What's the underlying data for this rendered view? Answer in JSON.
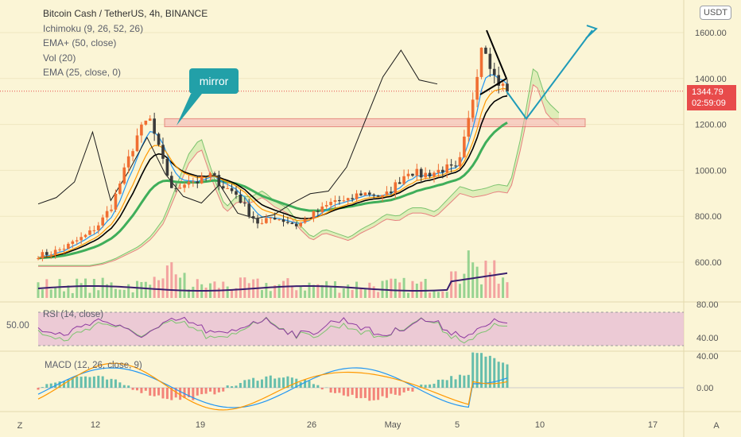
{
  "legend": {
    "title": "Bitcoin Cash / TetherUS, 4h, BINANCE",
    "items": [
      "Ichimoku (9, 26, 52, 26)",
      "EMA+ (50, close)",
      "Vol (20)",
      "EMA (25, close, 0)"
    ]
  },
  "currency_badge": "USDT",
  "annotation": "mirror",
  "price_tag": {
    "price": "1344.79",
    "countdown": "02:59:09"
  },
  "rsi_label": "RSI (14, close)",
  "rsi_left_value": "50.00",
  "macd_label": "MACD (12, 26, close, 9)",
  "corner_left": "Z",
  "corner_right": "A",
  "colors": {
    "background": "#fbf5d6",
    "up": "#f06e32",
    "down": "#3a3a3a",
    "ema_black": "#000000",
    "ema_green": "#3fae5a",
    "tenkan": "#2196f3",
    "kijun": "#ff9800",
    "chikou": "#1a1a1a",
    "cloud_green": "#c8e6a0",
    "cloud_red": "#f4b7b7",
    "zone": "#f6b6b6",
    "projection": "#1f9bb8",
    "rsi_band": "#e6b8d4",
    "price_tag": "#e84b4b"
  },
  "chart_data": {
    "type": "candlestick",
    "symbol": "BCHUSDT",
    "timeframe": "4h",
    "x_tick_labels": [
      "12",
      "19",
      "26",
      "May",
      "5",
      "10",
      "17"
    ],
    "price_axis": {
      "ticks": [
        1600,
        1400,
        1200,
        1000,
        800,
        600
      ],
      "labels": [
        "1600.00",
        "1400.00",
        "1200.00",
        "1000.00",
        "800.00",
        "600.00"
      ]
    },
    "rsi_axis": {
      "labels": [
        "80.00",
        "40.00"
      ]
    },
    "macd_axis": {
      "labels": [
        "40.00",
        "0.00"
      ]
    },
    "last_price": 1344.79,
    "zone": {
      "low": 1190,
      "high": 1225
    },
    "close_path": [
      630,
      640,
      660,
      690,
      720,
      770,
      850,
      1000,
      1150,
      1230,
      1050,
      900,
      960,
      950,
      980,
      930,
      900,
      820,
      760,
      800,
      780,
      760,
      800,
      830,
      870,
      860,
      900,
      900,
      880,
      940,
      1000,
      980,
      990,
      1010,
      1000,
      1250,
      1580,
      1400,
      1344.79
    ],
    "projection": [
      1344.79,
      1225,
      1610
    ],
    "chikou_path": [
      850,
      880,
      950,
      1150,
      880,
      1000,
      1150,
      1000,
      900,
      860,
      950,
      820,
      780,
      800,
      850,
      900,
      900,
      1000,
      1200,
      1400,
      1520,
      1400,
      1380
    ]
  }
}
